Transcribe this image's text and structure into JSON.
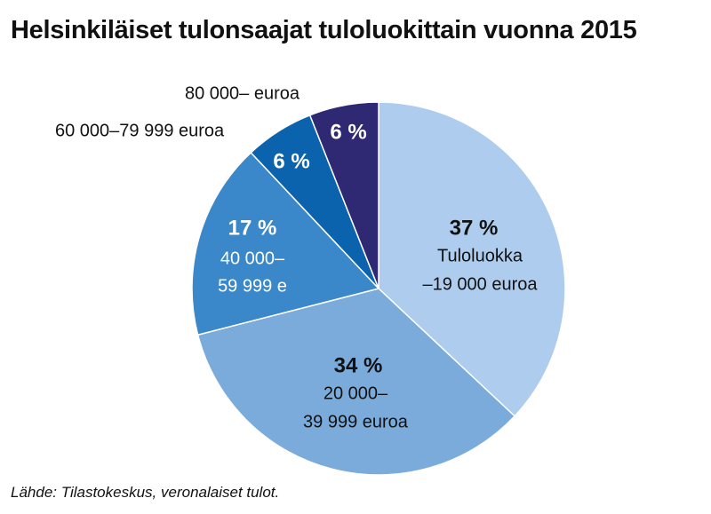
{
  "chart_data": {
    "type": "pie",
    "title": "Helsinkiläiset tulonsaajat tuloluokittain vuonna 2015",
    "source": "Lähde: Tilastokeskus, veronalaiset tulot.",
    "slices": [
      {
        "value": 37,
        "percent_label": "37 %",
        "label_lines": [
          "Tuloluokka",
          "–19 000 euroa"
        ],
        "color": "#aecdee",
        "text_color": "#111111"
      },
      {
        "value": 34,
        "percent_label": "34 %",
        "label_lines": [
          "20 000–",
          "39 999 euroa"
        ],
        "color": "#7aabdb",
        "text_color": "#111111"
      },
      {
        "value": 17,
        "percent_label": "17 %",
        "label_lines": [
          "40 000–",
          "59 999 e"
        ],
        "color": "#3a88c9",
        "text_color": "#ffffff"
      },
      {
        "value": 6,
        "percent_label": "6 %",
        "label_lines": [
          "60 000–79 999 euroa"
        ],
        "color": "#0b63ad",
        "text_color": "#ffffff"
      },
      {
        "value": 6,
        "percent_label": "6 %",
        "label_lines": [
          "80 000– euroa"
        ],
        "color": "#2f2872",
        "text_color": "#ffffff"
      }
    ]
  }
}
